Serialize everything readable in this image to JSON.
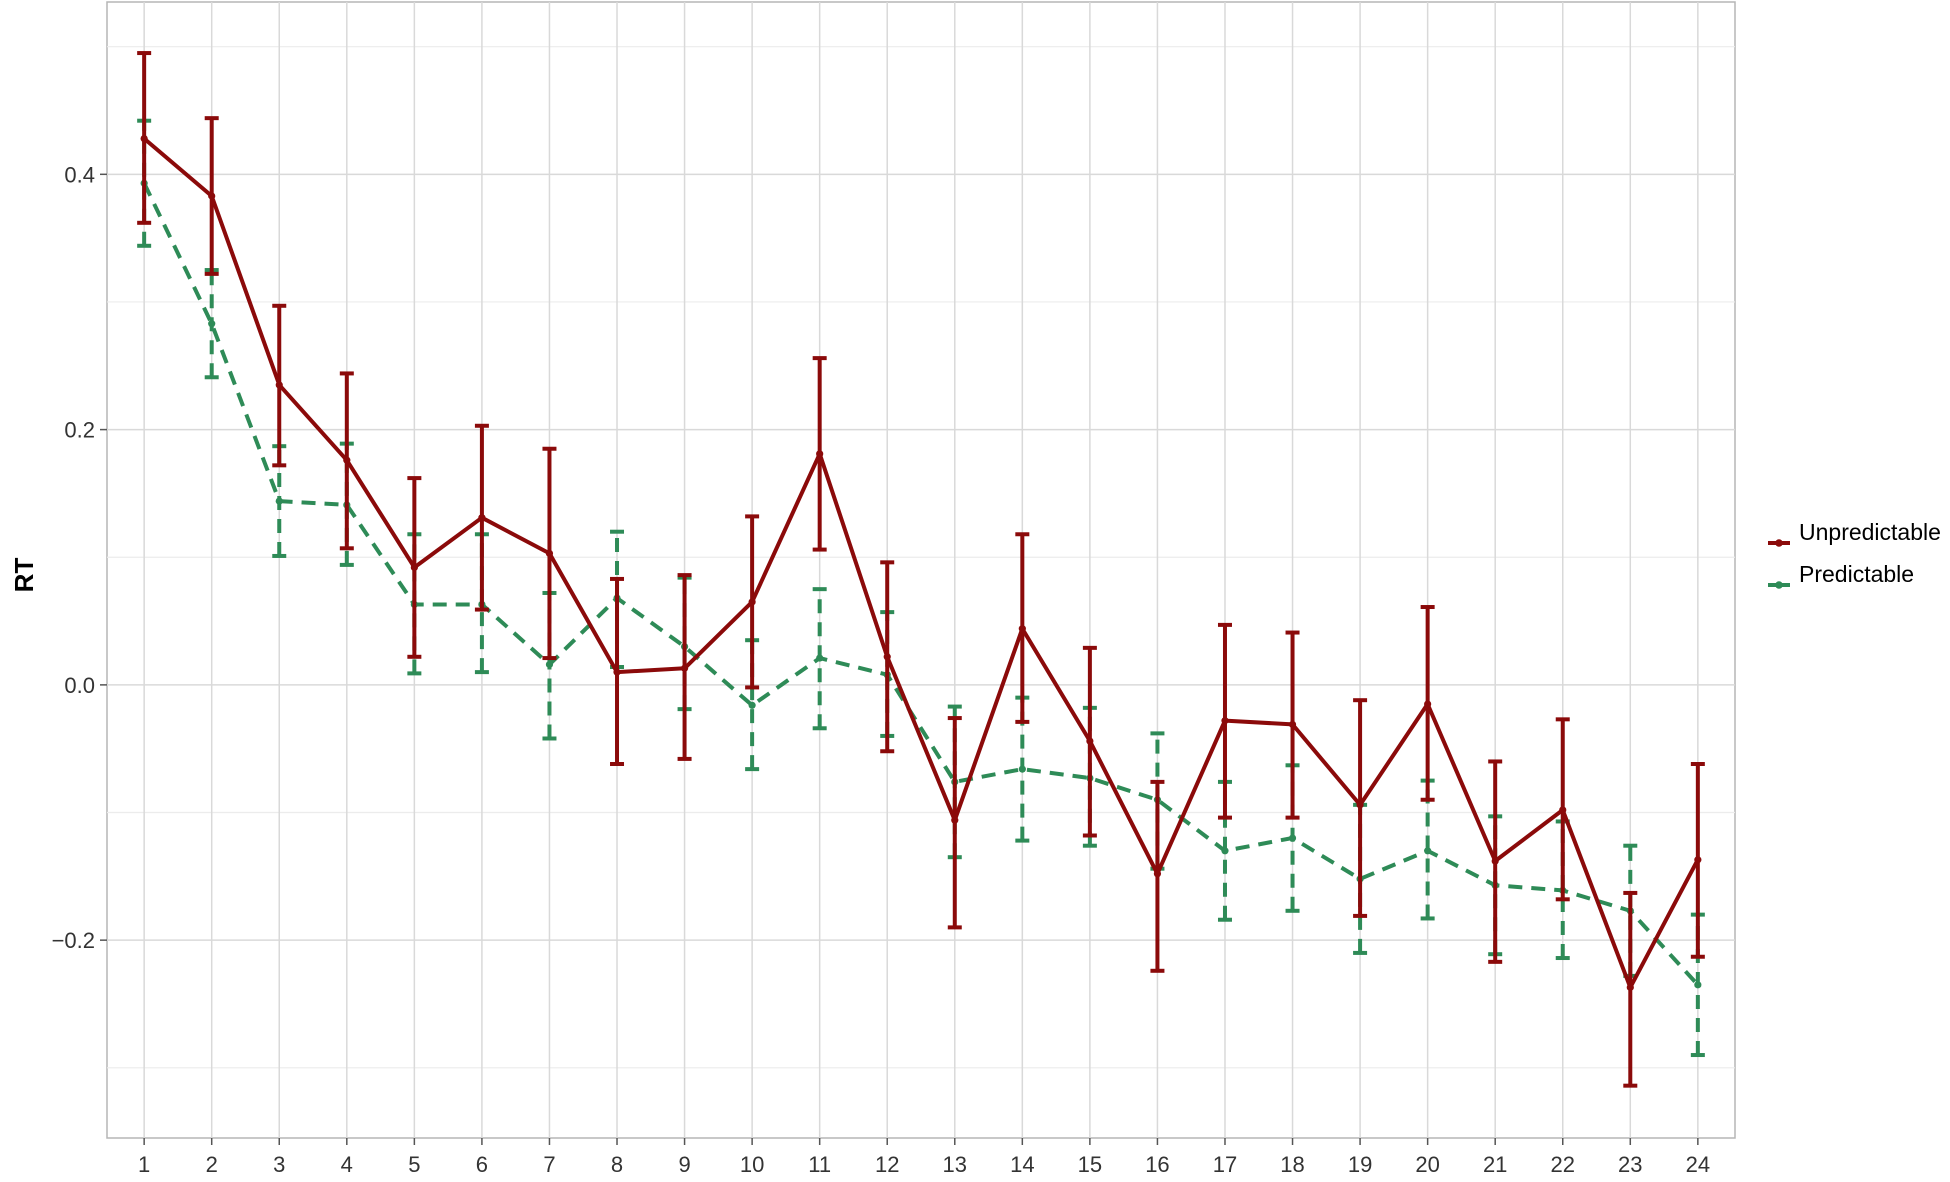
{
  "chart_data": {
    "type": "line",
    "title": "",
    "xlabel": "",
    "ylabel": "RT",
    "x": [
      1,
      2,
      3,
      4,
      5,
      6,
      7,
      8,
      9,
      10,
      11,
      12,
      13,
      14,
      15,
      16,
      17,
      18,
      19,
      20,
      21,
      22,
      23,
      24
    ],
    "x_tick_labels": [
      "1",
      "2",
      "3",
      "4",
      "5",
      "6",
      "7",
      "8",
      "9",
      "10",
      "11",
      "12",
      "13",
      "14",
      "15",
      "16",
      "17",
      "18",
      "19",
      "20",
      "21",
      "22",
      "23",
      "24"
    ],
    "xlim": [
      0.45,
      24.55
    ],
    "ylim": [
      -0.355,
      0.535
    ],
    "y_ticks": [
      0.4,
      0.2,
      0.0,
      -0.2
    ],
    "y_tick_labels": [
      "0.4",
      "0.2",
      "0.0",
      "−0.2"
    ],
    "y_minor_ticks": [
      0.5,
      0.3,
      0.1,
      -0.1,
      -0.3
    ],
    "grid": true,
    "legend_position": "right",
    "series": [
      {
        "name": "Unpredictable",
        "color": "#8b0a0a",
        "dash": "solid",
        "values": [
          0.428,
          0.383,
          0.235,
          0.176,
          0.092,
          0.131,
          0.103,
          0.01,
          0.013,
          0.065,
          0.181,
          0.022,
          -0.106,
          0.044,
          -0.044,
          -0.148,
          -0.028,
          -0.031,
          -0.094,
          -0.015,
          -0.138,
          -0.098,
          -0.237,
          -0.137
        ],
        "lower": [
          0.362,
          0.322,
          0.172,
          0.107,
          0.022,
          0.059,
          0.021,
          -0.062,
          -0.058,
          -0.002,
          0.106,
          -0.052,
          -0.19,
          -0.029,
          -0.118,
          -0.224,
          -0.104,
          -0.104,
          -0.181,
          -0.09,
          -0.217,
          -0.168,
          -0.314,
          -0.213
        ],
        "upper": [
          0.495,
          0.444,
          0.297,
          0.244,
          0.162,
          0.203,
          0.185,
          0.083,
          0.086,
          0.132,
          0.256,
          0.096,
          -0.026,
          0.118,
          0.029,
          -0.076,
          0.047,
          0.041,
          -0.012,
          0.061,
          -0.06,
          -0.027,
          -0.163,
          -0.062
        ]
      },
      {
        "name": "Predictable",
        "color": "#2e8b57",
        "dash": "dashed",
        "values": [
          0.393,
          0.283,
          0.144,
          0.141,
          0.063,
          0.063,
          0.016,
          0.068,
          0.03,
          -0.016,
          0.021,
          0.008,
          -0.076,
          -0.066,
          -0.073,
          -0.09,
          -0.13,
          -0.12,
          -0.152,
          -0.13,
          -0.157,
          -0.161,
          -0.177,
          -0.235
        ],
        "lower": [
          0.344,
          0.241,
          0.101,
          0.094,
          0.009,
          0.01,
          -0.042,
          0.014,
          -0.019,
          -0.066,
          -0.034,
          -0.04,
          -0.135,
          -0.122,
          -0.126,
          -0.144,
          -0.184,
          -0.177,
          -0.21,
          -0.183,
          -0.211,
          -0.214,
          -0.228,
          -0.29
        ],
        "upper": [
          0.442,
          0.325,
          0.187,
          0.189,
          0.118,
          0.118,
          0.072,
          0.12,
          0.084,
          0.035,
          0.075,
          0.057,
          -0.017,
          -0.01,
          -0.018,
          -0.038,
          -0.076,
          -0.063,
          -0.094,
          -0.075,
          -0.103,
          -0.107,
          -0.126,
          -0.18
        ]
      }
    ]
  }
}
